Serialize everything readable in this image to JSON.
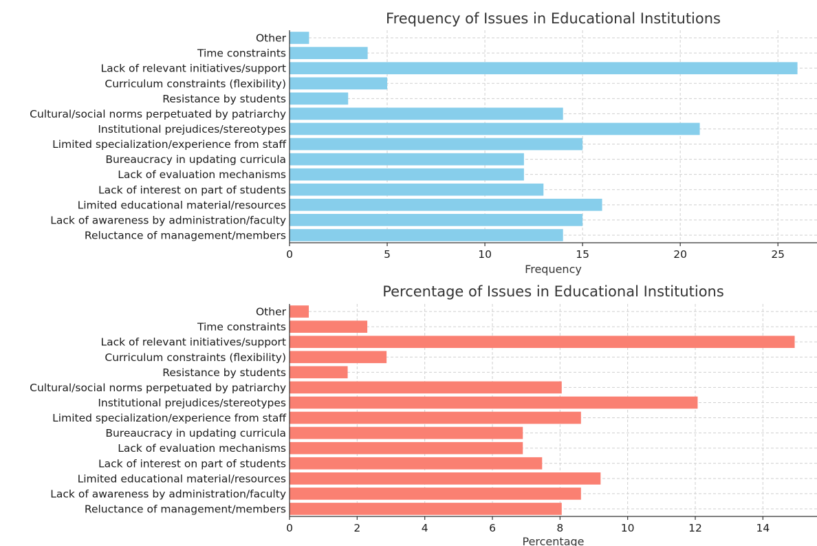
{
  "chart_data": [
    {
      "type": "bar",
      "orientation": "horizontal",
      "title": "Frequency of Issues in Educational Institutions",
      "xlabel": "Frequency",
      "ylabel": "",
      "color": "#87CEEB",
      "xlim": [
        0,
        27
      ],
      "xticks": [
        0,
        5,
        10,
        15,
        20,
        25
      ],
      "grid": true,
      "categories": [
        "Reluctance of management/members",
        "Lack of awareness by administration/faculty",
        "Limited educational material/resources",
        "Lack of interest on part of students",
        "Lack of evaluation mechanisms",
        "Bureaucracy in updating curricula",
        "Limited specialization/experience from staff",
        "Institutional prejudices/stereotypes",
        "Cultural/social norms perpetuated by patriarchy",
        "Resistance by students",
        "Curriculum constraints (flexibility)",
        "Lack of relevant initiatives/support",
        "Time constraints",
        "Other"
      ],
      "values": [
        14,
        15,
        16,
        13,
        12,
        12,
        15,
        21,
        14,
        3,
        5,
        26,
        4,
        1
      ]
    },
    {
      "type": "bar",
      "orientation": "horizontal",
      "title": "Percentage of Issues in Educational Institutions",
      "xlabel": "Percentage",
      "ylabel": "",
      "color": "#FA8072",
      "xlim": [
        0,
        15.6
      ],
      "xticks": [
        0,
        2,
        4,
        6,
        8,
        10,
        12,
        14
      ],
      "grid": true,
      "categories": [
        "Reluctance of management/members",
        "Lack of awareness by administration/faculty",
        "Limited educational material/resources",
        "Lack of interest on part of students",
        "Lack of evaluation mechanisms",
        "Bureaucracy in updating curricula",
        "Limited specialization/experience from staff",
        "Institutional prejudices/stereotypes",
        "Cultural/social norms perpetuated by patriarchy",
        "Resistance by students",
        "Curriculum constraints (flexibility)",
        "Lack of relevant initiatives/support",
        "Time constraints",
        "Other"
      ],
      "values": [
        8.05,
        8.62,
        9.2,
        7.47,
        6.9,
        6.9,
        8.62,
        12.07,
        8.05,
        1.72,
        2.87,
        14.94,
        2.3,
        0.57
      ]
    }
  ]
}
